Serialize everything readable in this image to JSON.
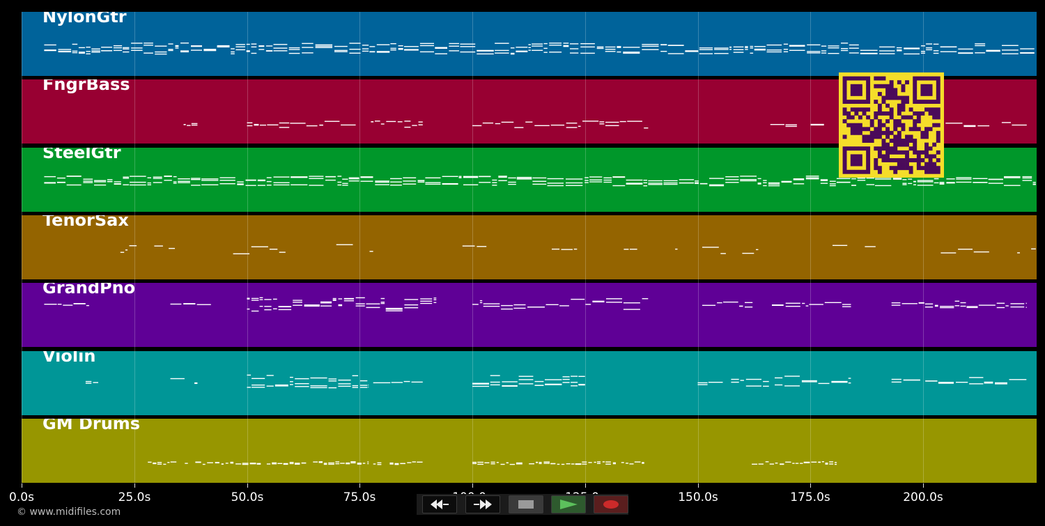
{
  "tracks": [
    {
      "name": "NylonGtr",
      "color": "#00639a"
    },
    {
      "name": "FngrBass",
      "color": "#980032"
    },
    {
      "name": "SteelGtr",
      "color": "#00972a"
    },
    {
      "name": "TenorSax",
      "color": "#946400"
    },
    {
      "name": "GrandPno",
      "color": "#5f0096"
    },
    {
      "name": "Violin",
      "color": "#009697"
    },
    {
      "name": "GM Drums",
      "color": "#979600"
    }
  ],
  "timeline": {
    "ticks": [
      "0.0s",
      "25.0s",
      "50.0s",
      "75.0s",
      "100.0s",
      "125.0s",
      "150.0s",
      "175.0s",
      "200.0s"
    ]
  },
  "footer": {
    "copyright": "© www.midifiles.com"
  },
  "transport": {
    "rewind": "rewind-icon",
    "fast_forward": "fast-forward-icon",
    "stop": "stop-icon",
    "play": "play-icon",
    "record": "record-icon",
    "play_color": "#5cc05c",
    "record_color": "#cc2a2a"
  },
  "qr": {
    "fg": "#4a0a5a",
    "bg": "#f5dd2a"
  }
}
